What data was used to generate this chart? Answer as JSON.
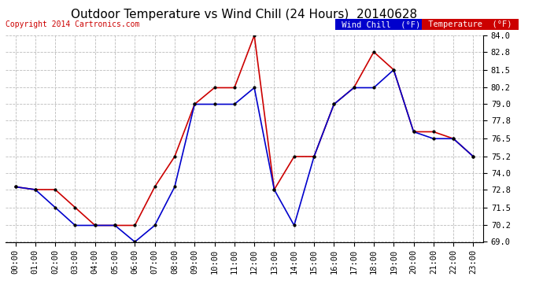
{
  "title": "Outdoor Temperature vs Wind Chill (24 Hours)  20140628",
  "copyright": "Copyright 2014 Cartronics.com",
  "background_color": "#ffffff",
  "plot_background": "#ffffff",
  "grid_color": "#bbbbbb",
  "ylim": [
    69.0,
    84.0
  ],
  "yticks": [
    69.0,
    70.2,
    71.5,
    72.8,
    74.0,
    75.2,
    76.5,
    77.8,
    79.0,
    80.2,
    81.5,
    82.8,
    84.0
  ],
  "hours": [
    "00:00",
    "01:00",
    "02:00",
    "03:00",
    "04:00",
    "05:00",
    "06:00",
    "07:00",
    "08:00",
    "09:00",
    "10:00",
    "11:00",
    "12:00",
    "13:00",
    "14:00",
    "15:00",
    "16:00",
    "17:00",
    "18:00",
    "19:00",
    "20:00",
    "21:00",
    "22:00",
    "23:00"
  ],
  "temperature": [
    73.0,
    72.8,
    72.8,
    71.5,
    70.2,
    70.2,
    70.2,
    73.0,
    75.2,
    79.0,
    80.2,
    80.2,
    84.0,
    72.8,
    75.2,
    75.2,
    79.0,
    80.2,
    82.8,
    81.5,
    77.0,
    77.0,
    76.5,
    75.2
  ],
  "wind_chill": [
    73.0,
    72.8,
    71.5,
    70.2,
    70.2,
    70.2,
    69.0,
    70.2,
    73.0,
    79.0,
    79.0,
    79.0,
    80.2,
    72.8,
    70.2,
    75.2,
    79.0,
    80.2,
    80.2,
    81.5,
    77.0,
    76.5,
    76.5,
    75.2
  ],
  "temp_color": "#cc0000",
  "wind_chill_color": "#0000cc",
  "marker_color": "#000000",
  "marker_size": 4,
  "line_width": 1.2,
  "legend_wind_chill_bg": "#0000cc",
  "legend_temp_bg": "#cc0000",
  "legend_text_color": "#ffffff",
  "title_fontsize": 11,
  "tick_fontsize": 7.5,
  "copyright_fontsize": 7,
  "copyright_color": "#cc0000"
}
